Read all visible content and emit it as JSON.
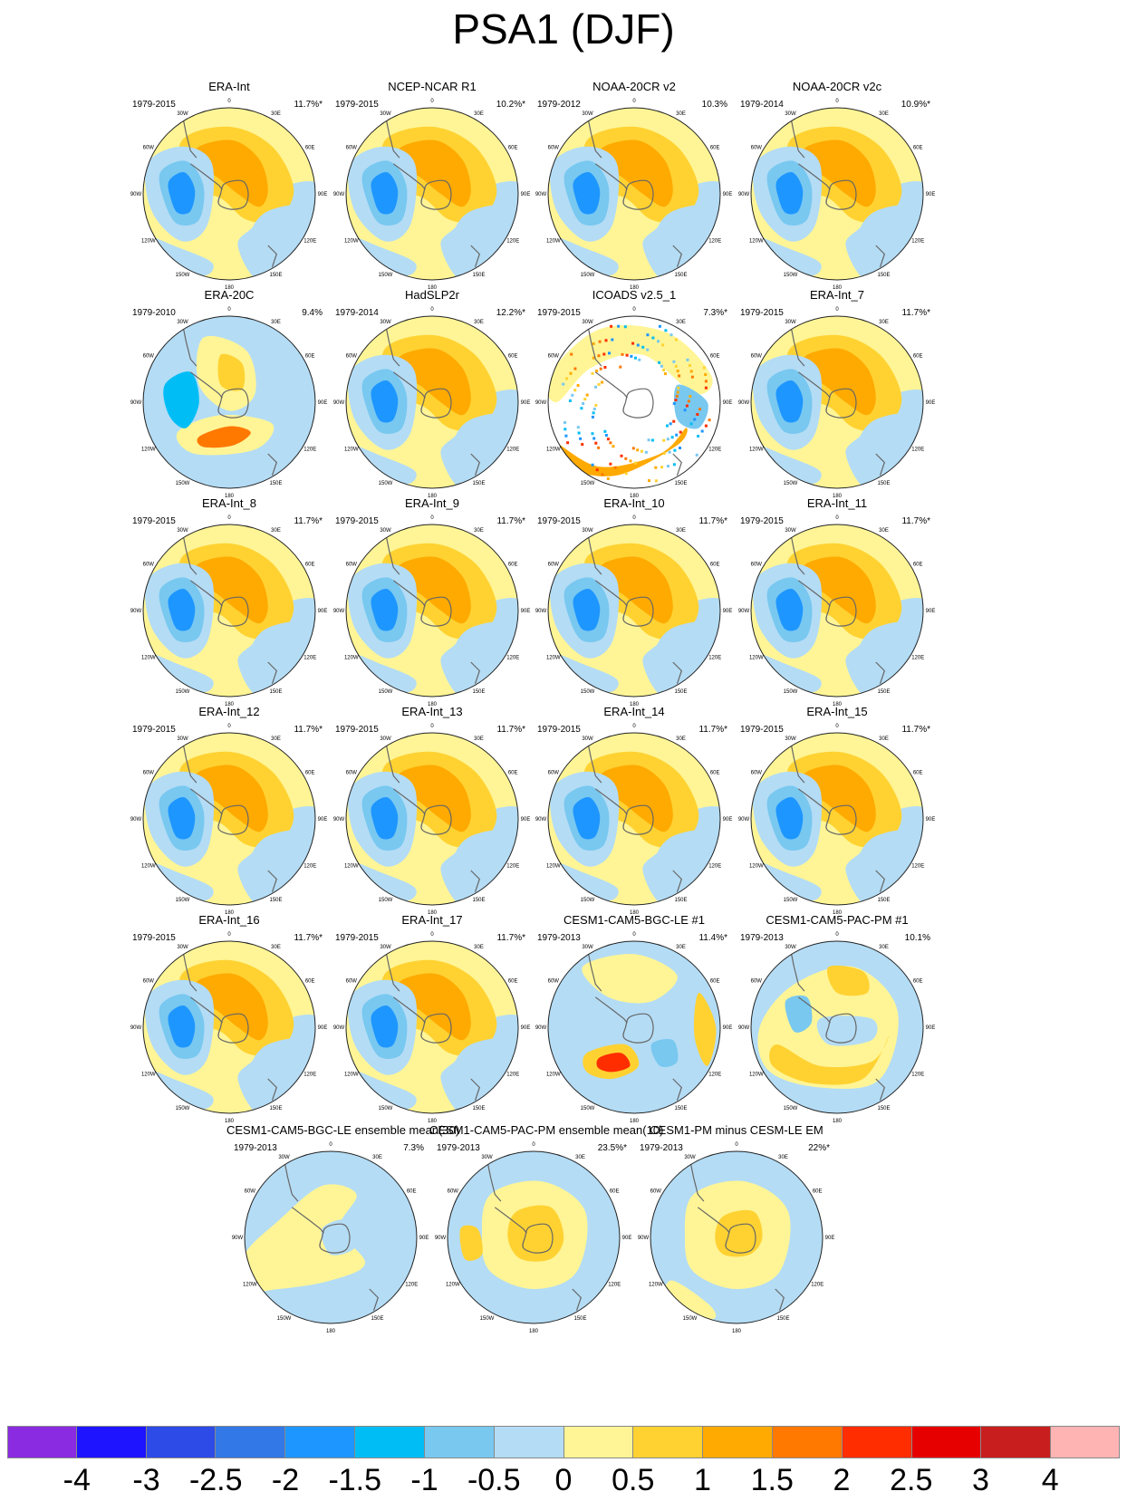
{
  "title": "PSA1 (DJF)",
  "chart_data": {
    "type": "contour-map-panels",
    "title": "PSA1 (DJF)",
    "projection": "south polar stereographic",
    "longitude_labels": [
      "0",
      "30E",
      "60E",
      "90E",
      "120E",
      "150E",
      "180",
      "150W",
      "120W",
      "90W",
      "60W",
      "30W"
    ],
    "panels": [
      {
        "name": "ERA-Int",
        "years": "1979-2015",
        "pct": "11.7%*",
        "pattern": "obs"
      },
      {
        "name": "NCEP-NCAR R1",
        "years": "1979-2015",
        "pct": "10.2%*",
        "pattern": "obs"
      },
      {
        "name": "NOAA-20CR v2",
        "years": "1979-2012",
        "pct": "10.3%",
        "pattern": "obs"
      },
      {
        "name": "NOAA-20CR v2c",
        "years": "1979-2014",
        "pct": "10.9%*",
        "pattern": "obs"
      },
      {
        "name": "ERA-20C",
        "years": "1979-2010",
        "pct": "9.4%",
        "pattern": "era20c"
      },
      {
        "name": "HadSLP2r",
        "years": "1979-2014",
        "pct": "12.2%*",
        "pattern": "obs"
      },
      {
        "name": "ICOADS v2.5_1",
        "years": "1979-2015",
        "pct": "7.3%*",
        "pattern": "icoads"
      },
      {
        "name": "ERA-Int_7",
        "years": "1979-2015",
        "pct": "11.7%*",
        "pattern": "obs"
      },
      {
        "name": "ERA-Int_8",
        "years": "1979-2015",
        "pct": "11.7%*",
        "pattern": "obs"
      },
      {
        "name": "ERA-Int_9",
        "years": "1979-2015",
        "pct": "11.7%*",
        "pattern": "obs"
      },
      {
        "name": "ERA-Int_10",
        "years": "1979-2015",
        "pct": "11.7%*",
        "pattern": "obs"
      },
      {
        "name": "ERA-Int_11",
        "years": "1979-2015",
        "pct": "11.7%*",
        "pattern": "obs"
      },
      {
        "name": "ERA-Int_12",
        "years": "1979-2015",
        "pct": "11.7%*",
        "pattern": "obs"
      },
      {
        "name": "ERA-Int_13",
        "years": "1979-2015",
        "pct": "11.7%*",
        "pattern": "obs"
      },
      {
        "name": "ERA-Int_14",
        "years": "1979-2015",
        "pct": "11.7%*",
        "pattern": "obs"
      },
      {
        "name": "ERA-Int_15",
        "years": "1979-2015",
        "pct": "11.7%*",
        "pattern": "obs"
      },
      {
        "name": "ERA-Int_16",
        "years": "1979-2015",
        "pct": "11.7%*",
        "pattern": "obs"
      },
      {
        "name": "ERA-Int_17",
        "years": "1979-2015",
        "pct": "11.7%*",
        "pattern": "obs"
      },
      {
        "name": "CESM1-CAM5-BGC-LE #1",
        "years": "1979-2013",
        "pct": "11.4%*",
        "pattern": "bgc1"
      },
      {
        "name": "CESM1-CAM5-PAC-PM #1",
        "years": "1979-2013",
        "pct": "10.1%",
        "pattern": "pac1"
      },
      {
        "name": "CESM1-CAM5-BGC-LE ensemble mean(30)",
        "years": "1979-2013",
        "pct": "7.3%",
        "pattern": "lemean"
      },
      {
        "name": "CESM1-CAM5-PAC-PM ensemble mean(10)",
        "years": "1979-2013",
        "pct": "23.5%*",
        "pattern": "pmmean"
      },
      {
        "name": "CESM1-PM minus CESM-LE EM",
        "years": "1979-2013",
        "pct": "22%*",
        "pattern": "pmminus"
      }
    ],
    "colorbar": {
      "labels": [
        "-4",
        "-3",
        "-2.5",
        "-2",
        "-1.5",
        "-1",
        "-0.5",
        "0",
        "0.5",
        "1",
        "1.5",
        "2",
        "2.5",
        "3",
        "4"
      ],
      "colors": [
        "#8a2be2",
        "#1e14ff",
        "#2d4be6",
        "#3278e6",
        "#1e96ff",
        "#00bef5",
        "#78c8f0",
        "#b4dcf5",
        "#fff596",
        "#ffd232",
        "#ffaa00",
        "#ff7800",
        "#ff2d00",
        "#e60000",
        "#c81e1e",
        "#ffb4b4"
      ]
    }
  }
}
